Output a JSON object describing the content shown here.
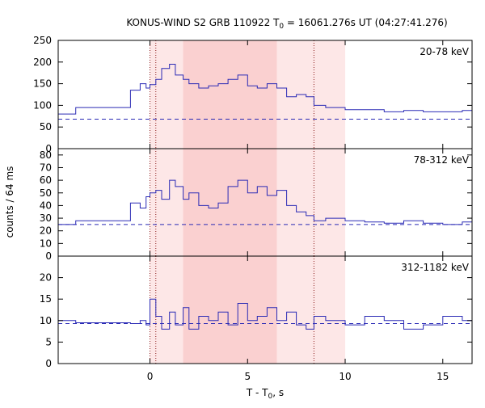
{
  "chart_data": {
    "type": "line",
    "title": "KONUS-WIND S2 GRB 110922 T",
    "title_sub": "0",
    "title_rest": " = 16061.276s UT (04:27:41.276)",
    "xlabel": "T - T",
    "xlabel_sub": "0",
    "xlabel_rest": ", s",
    "ylabel": "counts / 64 ms",
    "xlim": [
      -4.7,
      16.5
    ],
    "xticks": [
      0,
      5,
      10,
      15
    ],
    "shaded_intervals": [
      {
        "x0": 0,
        "x1": 10,
        "color": "#fde7e7"
      },
      {
        "x0": 1.7,
        "x1": 6.5,
        "color": "#fad0d0"
      }
    ],
    "dotted_lines": [
      0,
      0.3,
      8.4
    ],
    "dotted_color": "#8b1a1a",
    "series_color": "#2a2ab5",
    "panels": [
      {
        "label": "20-78 keV",
        "ylim": [
          0,
          250
        ],
        "yticks": [
          0,
          50,
          100,
          150,
          200,
          250
        ],
        "background": 68,
        "x": [
          -4.7,
          -3.8,
          -1.0,
          -0.5,
          -0.2,
          0.0,
          0.3,
          0.6,
          1.0,
          1.3,
          1.7,
          2.0,
          2.5,
          3.0,
          3.5,
          4.0,
          4.5,
          5.0,
          5.5,
          6.0,
          6.5,
          7.0,
          7.5,
          8.0,
          8.4,
          9.0,
          10.0,
          11.0,
          12.0,
          13.0,
          14.0,
          15.0,
          16.0,
          16.5
        ],
        "values": [
          80,
          95,
          135,
          150,
          140,
          148,
          160,
          185,
          195,
          170,
          160,
          150,
          140,
          145,
          150,
          160,
          170,
          145,
          140,
          150,
          140,
          120,
          125,
          120,
          100,
          95,
          90,
          90,
          85,
          88,
          85,
          85,
          88,
          95
        ]
      },
      {
        "label": "78-312 keV",
        "ylim": [
          0,
          85
        ],
        "yticks": [
          0,
          10,
          20,
          30,
          40,
          50,
          60,
          70,
          80
        ],
        "background": 25,
        "x": [
          -4.7,
          -3.8,
          -1.0,
          -0.5,
          -0.2,
          0.0,
          0.3,
          0.6,
          1.0,
          1.3,
          1.7,
          2.0,
          2.5,
          3.0,
          3.5,
          4.0,
          4.5,
          5.0,
          5.5,
          6.0,
          6.5,
          7.0,
          7.5,
          8.0,
          8.4,
          9.0,
          10.0,
          11.0,
          12.0,
          13.0,
          14.0,
          15.0,
          16.0,
          16.5
        ],
        "values": [
          25,
          28,
          42,
          38,
          47,
          50,
          52,
          45,
          60,
          55,
          45,
          50,
          40,
          38,
          42,
          55,
          60,
          50,
          55,
          48,
          52,
          40,
          35,
          32,
          28,
          30,
          28,
          27,
          26,
          28,
          26,
          25,
          27,
          28
        ]
      },
      {
        "label": "312-1182 keV",
        "ylim": [
          0,
          25
        ],
        "yticks": [
          0,
          5,
          10,
          15,
          20
        ],
        "background": 9.3,
        "x": [
          -4.7,
          -3.8,
          -1.0,
          -0.5,
          -0.2,
          0.0,
          0.3,
          0.6,
          1.0,
          1.3,
          1.7,
          2.0,
          2.5,
          3.0,
          3.5,
          4.0,
          4.5,
          5.0,
          5.5,
          6.0,
          6.5,
          7.0,
          7.5,
          8.0,
          8.4,
          9.0,
          10.0,
          11.0,
          12.0,
          13.0,
          14.0,
          15.0,
          16.0,
          16.5
        ],
        "values": [
          10,
          9.5,
          9.3,
          10,
          9,
          15,
          11,
          8,
          12,
          9,
          13,
          8,
          11,
          10,
          12,
          9,
          14,
          10,
          11,
          13,
          10,
          12,
          9,
          8,
          11,
          10,
          9,
          11,
          10,
          8,
          9,
          11,
          10,
          9
        ]
      }
    ]
  }
}
